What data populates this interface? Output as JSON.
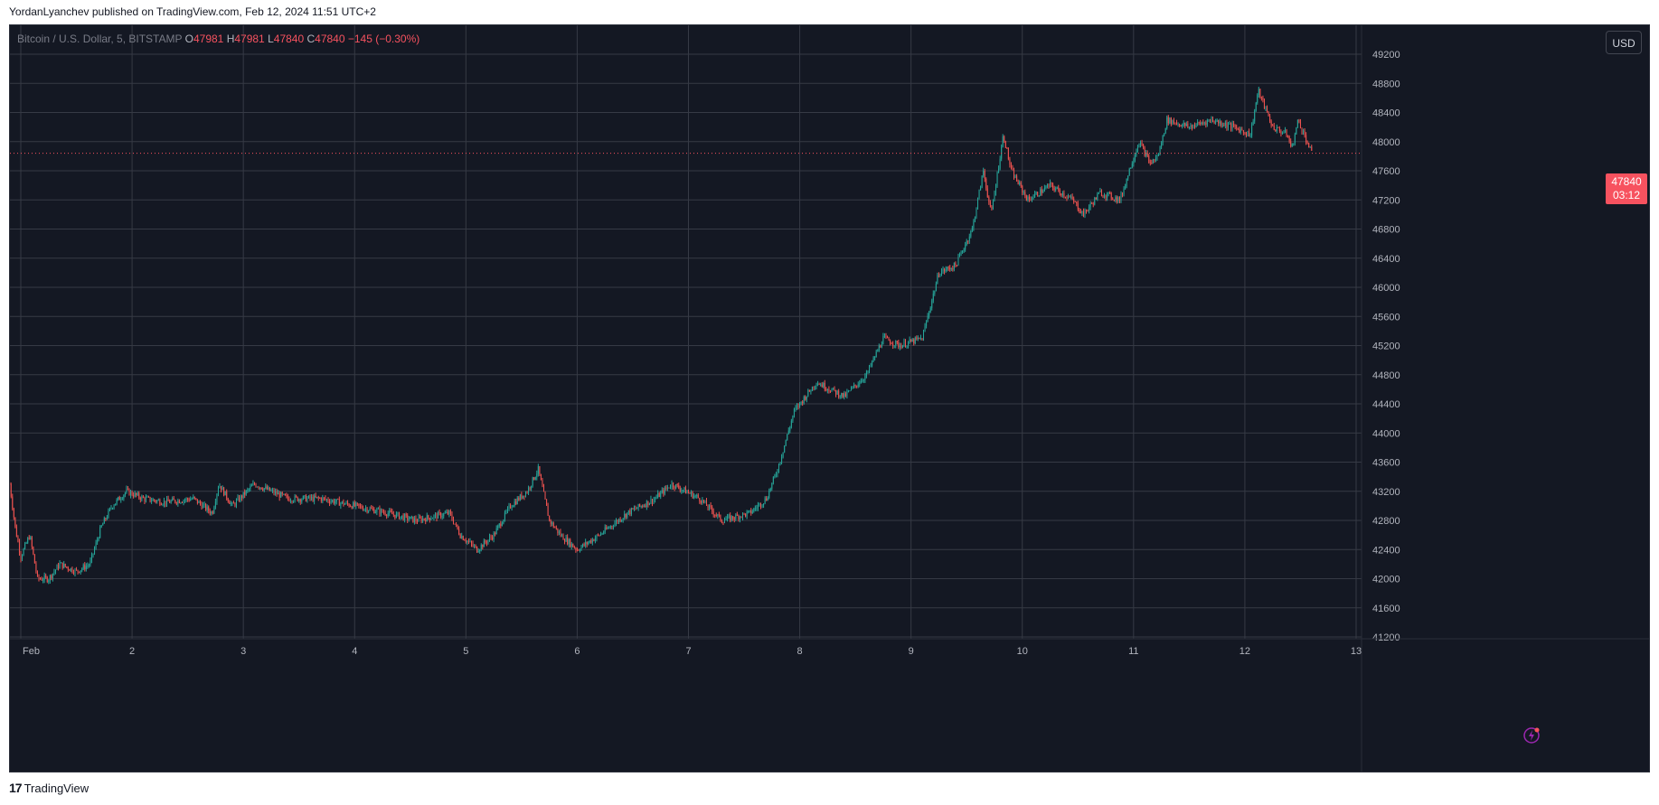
{
  "header": {
    "published_text": "YordanLyanchev published on TradingView.com, Feb 12, 2024 11:51 UTC+2"
  },
  "legend": {
    "symbol": "Bitcoin / U.S. Dollar, 5, BITSTAMP",
    "o_label": "O",
    "o_value": "47981",
    "h_label": "H",
    "h_value": "47981",
    "l_label": "L",
    "l_value": "47840",
    "c_label": "C",
    "c_value": "47840",
    "change": "−145 (−0.30%)"
  },
  "currency_button": "USD",
  "last_price": {
    "price": "47840",
    "countdown": "03:12"
  },
  "footer": {
    "brand": "TradingView"
  },
  "colors": {
    "up": "#26a69a",
    "down": "#ef5350",
    "grid": "#363a45",
    "background": "#141823",
    "axis_text": "#b2b5be",
    "last_price_line": "#f7525f"
  },
  "chart_data": {
    "type": "candlestick",
    "interval": "5",
    "exchange": "BITSTAMP",
    "y_axis": {
      "ylim": [
        41200,
        49400
      ],
      "ticks": [
        41200,
        41600,
        42000,
        42400,
        42800,
        43200,
        43600,
        44000,
        44400,
        44800,
        45200,
        45600,
        46000,
        46400,
        46800,
        47200,
        47600,
        48000,
        48400,
        48800,
        49200
      ],
      "position": "right"
    },
    "x_axis": {
      "labels": [
        "Feb",
        "2",
        "3",
        "4",
        "5",
        "6",
        "7",
        "8",
        "9",
        "10",
        "11",
        "12",
        "13"
      ],
      "day_positions": [
        1,
        2,
        3,
        4,
        5,
        6,
        7,
        8,
        9,
        10,
        11,
        12,
        13
      ]
    },
    "grid": true,
    "last_price": 47840,
    "price_path": [
      {
        "day": 0.9,
        "price": 43300
      },
      {
        "day": 0.95,
        "price": 42700
      },
      {
        "day": 1.0,
        "price": 42300
      },
      {
        "day": 1.08,
        "price": 42600
      },
      {
        "day": 1.15,
        "price": 42000
      },
      {
        "day": 1.25,
        "price": 42000
      },
      {
        "day": 1.35,
        "price": 42200
      },
      {
        "day": 1.5,
        "price": 42100
      },
      {
        "day": 1.62,
        "price": 42200
      },
      {
        "day": 1.72,
        "price": 42700
      },
      {
        "day": 1.82,
        "price": 43000
      },
      {
        "day": 1.95,
        "price": 43200
      },
      {
        "day": 2.1,
        "price": 43100
      },
      {
        "day": 2.3,
        "price": 43050
      },
      {
        "day": 2.55,
        "price": 43100
      },
      {
        "day": 2.72,
        "price": 42900
      },
      {
        "day": 2.78,
        "price": 43300
      },
      {
        "day": 2.9,
        "price": 43000
      },
      {
        "day": 3.1,
        "price": 43300
      },
      {
        "day": 3.4,
        "price": 43100
      },
      {
        "day": 3.7,
        "price": 43100
      },
      {
        "day": 4.0,
        "price": 43000
      },
      {
        "day": 4.3,
        "price": 42900
      },
      {
        "day": 4.55,
        "price": 42800
      },
      {
        "day": 4.85,
        "price": 42900
      },
      {
        "day": 4.95,
        "price": 42600
      },
      {
        "day": 5.1,
        "price": 42400
      },
      {
        "day": 5.25,
        "price": 42600
      },
      {
        "day": 5.4,
        "price": 43000
      },
      {
        "day": 5.55,
        "price": 43200
      },
      {
        "day": 5.65,
        "price": 43500
      },
      {
        "day": 5.75,
        "price": 42800
      },
      {
        "day": 5.85,
        "price": 42600
      },
      {
        "day": 6.0,
        "price": 42400
      },
      {
        "day": 6.2,
        "price": 42600
      },
      {
        "day": 6.45,
        "price": 42900
      },
      {
        "day": 6.7,
        "price": 43100
      },
      {
        "day": 6.85,
        "price": 43300
      },
      {
        "day": 7.1,
        "price": 43100
      },
      {
        "day": 7.3,
        "price": 42800
      },
      {
        "day": 7.55,
        "price": 42900
      },
      {
        "day": 7.7,
        "price": 43100
      },
      {
        "day": 7.8,
        "price": 43500
      },
      {
        "day": 7.95,
        "price": 44300
      },
      {
        "day": 8.15,
        "price": 44700
      },
      {
        "day": 8.4,
        "price": 44500
      },
      {
        "day": 8.6,
        "price": 44800
      },
      {
        "day": 8.75,
        "price": 45300
      },
      {
        "day": 8.9,
        "price": 45200
      },
      {
        "day": 9.1,
        "price": 45300
      },
      {
        "day": 9.25,
        "price": 46200
      },
      {
        "day": 9.4,
        "price": 46300
      },
      {
        "day": 9.55,
        "price": 46800
      },
      {
        "day": 9.65,
        "price": 47600
      },
      {
        "day": 9.72,
        "price": 47000
      },
      {
        "day": 9.83,
        "price": 48100
      },
      {
        "day": 9.9,
        "price": 47600
      },
      {
        "day": 10.05,
        "price": 47200
      },
      {
        "day": 10.25,
        "price": 47400
      },
      {
        "day": 10.45,
        "price": 47200
      },
      {
        "day": 10.55,
        "price": 47000
      },
      {
        "day": 10.7,
        "price": 47300
      },
      {
        "day": 10.88,
        "price": 47200
      },
      {
        "day": 10.98,
        "price": 47700
      },
      {
        "day": 11.05,
        "price": 48000
      },
      {
        "day": 11.15,
        "price": 47700
      },
      {
        "day": 11.22,
        "price": 47800
      },
      {
        "day": 11.3,
        "price": 48300
      },
      {
        "day": 11.5,
        "price": 48200
      },
      {
        "day": 11.7,
        "price": 48300
      },
      {
        "day": 11.9,
        "price": 48200
      },
      {
        "day": 12.05,
        "price": 48100
      },
      {
        "day": 12.12,
        "price": 48700
      },
      {
        "day": 12.25,
        "price": 48200
      },
      {
        "day": 12.38,
        "price": 48100
      },
      {
        "day": 12.42,
        "price": 47900
      },
      {
        "day": 12.48,
        "price": 48300
      },
      {
        "day": 12.6,
        "price": 47840
      }
    ]
  }
}
